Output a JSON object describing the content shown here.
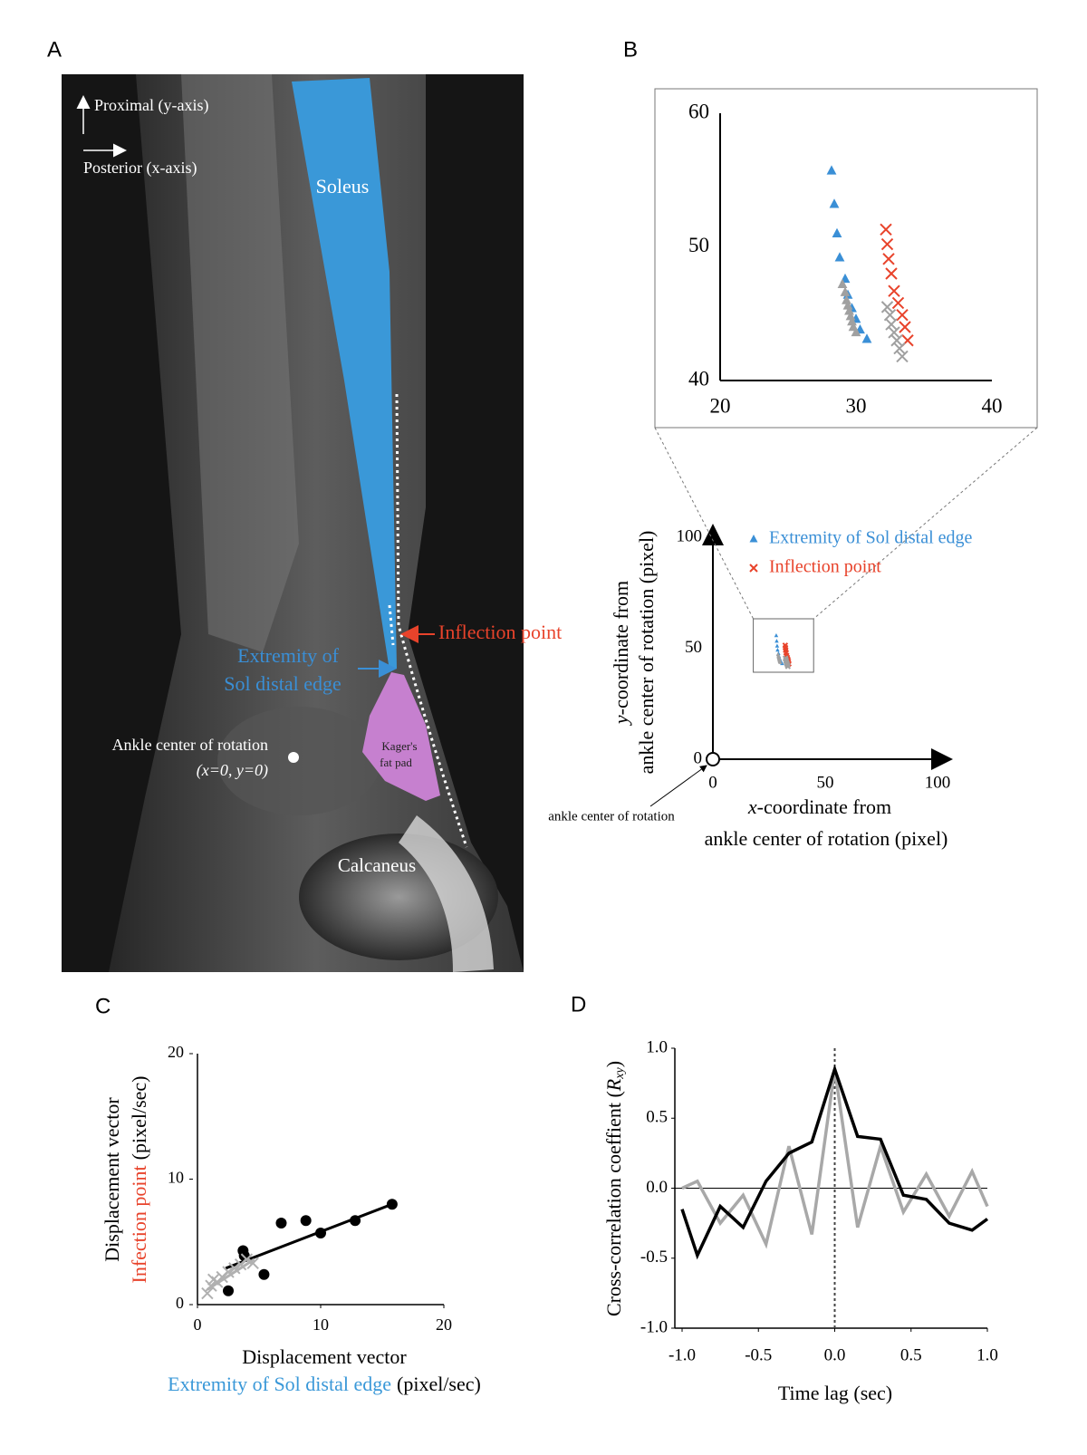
{
  "panel_a": {
    "label": "A",
    "proximal": "Proximal (y-axis)",
    "posterior": "Posterior (x-axis)",
    "soleus": "Soleus",
    "inflection": "Inflection point",
    "extremity": [
      "Extremity of",
      "Sol distal edge"
    ],
    "ankle": [
      "Ankle center of rotation",
      "(x=0, y=0)"
    ],
    "fat_pad": [
      "Kager's",
      "fat pad"
    ],
    "calcaneus": "Calcaneus"
  },
  "chart_data": [
    {
      "type": "scatter",
      "panel": "B",
      "xlim": [
        0,
        100
      ],
      "ylim": [
        0,
        100
      ],
      "xticks": [
        0,
        50,
        100
      ],
      "yticks": [
        0,
        50,
        100
      ],
      "xlabel": [
        "x",
        "-coordinate from",
        "ankle center of rotation (pixel)"
      ],
      "ylabel": [
        "y",
        "-coordinate from",
        "ankle center of rotation (pixel)"
      ],
      "annotation": "ankle center of rotation",
      "series": [
        {
          "name": "Extremity of Sol distal edge",
          "color": "#3a8fd6",
          "marker": "triangle",
          "x": [
            28.2,
            28.4,
            28.6,
            28.8,
            29.2,
            29.4,
            29.7,
            30.0,
            30.3,
            30.8
          ],
          "values": [
            55.7,
            53.2,
            51.0,
            49.2,
            47.6,
            46.4,
            45.4,
            44.6,
            43.8,
            43.1
          ]
        },
        {
          "color": "#a0a0a0",
          "marker": "triangle",
          "x": [
            29.0,
            29.2,
            29.3,
            29.4,
            29.5,
            29.6,
            29.7,
            29.8,
            30.0
          ],
          "values": [
            47.2,
            46.6,
            46.0,
            45.6,
            45.2,
            44.8,
            44.4,
            44.0,
            43.6
          ]
        },
        {
          "name": "Inflection point",
          "color": "#e8432b",
          "marker": "x",
          "x": [
            32.2,
            32.3,
            32.4,
            32.6,
            32.8,
            33.1,
            33.4,
            33.6,
            33.8
          ],
          "values": [
            51.3,
            50.2,
            49.1,
            48.0,
            46.7,
            45.8,
            44.9,
            44.0,
            43.0
          ]
        },
        {
          "color": "#a0a0a0",
          "marker": "x",
          "x": [
            32.3,
            32.5,
            32.6,
            32.8,
            33.0,
            33.2,
            33.4
          ],
          "values": [
            45.5,
            44.9,
            44.2,
            43.6,
            43.0,
            42.4,
            41.8
          ]
        }
      ]
    },
    {
      "type": "zoom",
      "xlim": [
        20,
        40
      ],
      "ylim": [
        40,
        60
      ],
      "xticks": [
        20,
        30,
        40
      ],
      "yticks": [
        40,
        50,
        60
      ]
    },
    {
      "type": "scatter",
      "panel": "C",
      "xlim": [
        0,
        20
      ],
      "ylim": [
        0,
        20
      ],
      "xticks": [
        0,
        10,
        20
      ],
      "yticks": [
        0,
        10,
        20
      ],
      "xlabel": [
        "Displacement vector",
        "Extremity of Sol distal edge",
        "(pixel/sec)"
      ],
      "ylabel": [
        "Displacement vector",
        "Infection point",
        "(pixel/sec)"
      ],
      "series": [
        {
          "color": "#000000",
          "marker": "circle",
          "x": [
            2.5,
            3.7,
            3.8,
            5.4,
            6.8,
            8.8,
            10.0,
            12.8,
            15.8
          ],
          "values": [
            1.1,
            4.3,
            3.9,
            2.4,
            6.5,
            6.7,
            5.7,
            6.7,
            8.0
          ]
        },
        {
          "color": "#b0b0b0",
          "marker": "x",
          "x": [
            0.8,
            1.1,
            1.3,
            1.6,
            2.0,
            2.5,
            3.0,
            3.5,
            4.0,
            4.5
          ],
          "values": [
            0.9,
            1.5,
            2.0,
            1.8,
            2.2,
            2.6,
            2.9,
            3.2,
            3.6,
            3.3
          ]
        }
      ],
      "lines": [
        {
          "color": "#000000",
          "x": [
            2.3,
            15.8
          ],
          "values": [
            2.9,
            8.0
          ]
        },
        {
          "color": "#b0b0b0",
          "x": [
            0.8,
            4.6
          ],
          "values": [
            1.2,
            3.6
          ]
        }
      ]
    },
    {
      "type": "line",
      "panel": "D",
      "xlim": [
        -1,
        1
      ],
      "ylim": [
        -1,
        1
      ],
      "xticks": [
        {
          "value": -1,
          "label": "-1.0"
        },
        -0.5,
        {
          "value": 0,
          "label": "0.0"
        },
        0.5,
        {
          "value": 1,
          "label": "1.0"
        }
      ],
      "yticks": [
        {
          "value": -1,
          "label": "-1.0"
        },
        -0.5,
        {
          "value": 0,
          "label": "0.0"
        },
        0.5,
        {
          "value": 1,
          "label": "1.0"
        }
      ],
      "xlabel": "Time lag (sec)",
      "ylabel": [
        "Cross-correlation coeffient (",
        "R",
        "xy",
        ")"
      ],
      "x": [
        -1.0,
        -0.9,
        -0.75,
        -0.6,
        -0.45,
        -0.3,
        -0.15,
        0.0,
        0.15,
        0.3,
        0.45,
        0.6,
        0.75,
        0.9,
        1.0
      ],
      "series": [
        {
          "color": "#000000",
          "values": [
            -0.15,
            -0.48,
            -0.13,
            -0.28,
            0.05,
            0.25,
            0.33,
            0.85,
            0.37,
            0.35,
            -0.05,
            -0.08,
            -0.25,
            -0.3,
            -0.22
          ]
        },
        {
          "color": "#a8a8a8",
          "values": [
            0.0,
            0.05,
            -0.25,
            -0.05,
            -0.4,
            0.3,
            -0.33,
            0.85,
            -0.28,
            0.3,
            -0.17,
            0.1,
            -0.2,
            0.12,
            -0.13
          ]
        }
      ]
    }
  ]
}
